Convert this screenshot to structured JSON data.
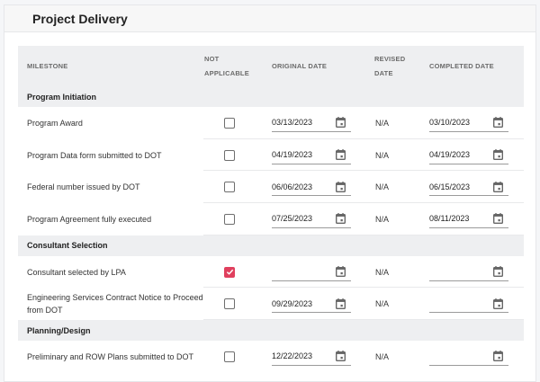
{
  "card": {
    "title": "Project Delivery"
  },
  "table": {
    "headers": {
      "milestone": "MILESTONE",
      "not_applicable_1": "NOT",
      "not_applicable_2": "APPLICABLE",
      "original_date": "ORIGINAL DATE",
      "revised_date_1": "REVISED",
      "revised_date_2": "DATE",
      "completed_date": "COMPLETED DATE"
    },
    "groups": [
      {
        "title": "Program Initiation",
        "rows": [
          {
            "milestone": "Program Award",
            "not_applicable": false,
            "original_date": "03/13/2023",
            "revised_date": "N/A",
            "completed_date": "03/10/2023"
          },
          {
            "milestone": "Program Data form submitted to DOT",
            "not_applicable": false,
            "original_date": "04/19/2023",
            "revised_date": "N/A",
            "completed_date": "04/19/2023"
          },
          {
            "milestone": "Federal number issued by DOT",
            "not_applicable": false,
            "original_date": "06/06/2023",
            "revised_date": "N/A",
            "completed_date": "06/15/2023"
          },
          {
            "milestone": "Program Agreement fully executed",
            "not_applicable": false,
            "original_date": "07/25/2023",
            "revised_date": "N/A",
            "completed_date": "08/11/2023"
          }
        ]
      },
      {
        "title": "Consultant Selection",
        "rows": [
          {
            "milestone": "Consultant selected by LPA",
            "not_applicable": true,
            "original_date": "",
            "revised_date": "N/A",
            "completed_date": ""
          },
          {
            "milestone": "Engineering Services Contract Notice to Proceed from DOT",
            "not_applicable": false,
            "original_date": "09/29/2023",
            "revised_date": "N/A",
            "completed_date": ""
          }
        ]
      },
      {
        "title": "Planning/Design",
        "rows": [
          {
            "milestone": "Preliminary and ROW Plans submitted to DOT",
            "not_applicable": false,
            "original_date": "12/22/2023",
            "revised_date": "N/A",
            "completed_date": ""
          }
        ]
      }
    ]
  },
  "colors": {
    "accent": "#e0405e",
    "header_bg": "#eeeff1"
  },
  "icons": {
    "date_picker": "calendar-icon",
    "checked": "check-icon"
  }
}
